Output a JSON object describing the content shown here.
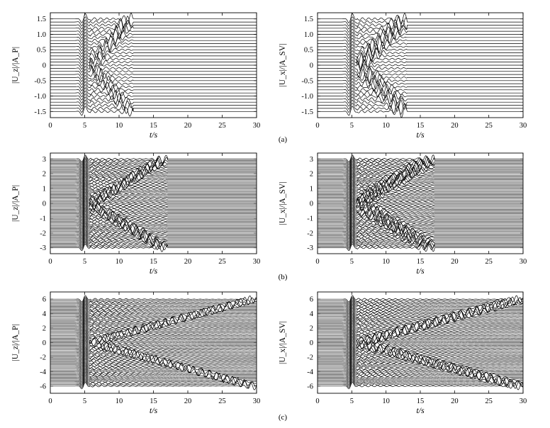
{
  "figure": {
    "subfigure_labels": [
      "(a)",
      "(b)",
      "(c)"
    ]
  },
  "chart_data": [
    {
      "type": "line",
      "panel": "a",
      "position": "left",
      "ylabel": "|U_z|/|A_P|",
      "xlabel": "t/s",
      "xlim": [
        0,
        30
      ],
      "ylim": [
        -1.7,
        1.7
      ],
      "xticks": [
        0,
        5,
        10,
        15,
        20,
        25,
        30
      ],
      "yticks": [
        1.5,
        1.0,
        0.5,
        0,
        -0.5,
        -1.0,
        -1.5
      ],
      "ytick_labels": [
        "1.5",
        "1.0",
        "0.5",
        "0",
        "-0.5",
        "-1.0",
        "-1.5"
      ],
      "n_traces": 31,
      "trace_spacing": 0.1,
      "pulse_time": 4.9,
      "pulse_amplitude": 0.2,
      "tail_end_time": 12
    },
    {
      "type": "line",
      "panel": "a",
      "position": "right",
      "ylabel": "|U_x|/|A_SV|",
      "xlabel": "t/s",
      "xlim": [
        0,
        30
      ],
      "ylim": [
        -1.7,
        1.7
      ],
      "xticks": [
        0,
        5,
        10,
        15,
        20,
        25,
        30
      ],
      "yticks": [
        1.5,
        1.0,
        0.5,
        0,
        -0.5,
        -1.0,
        -1.5
      ],
      "ytick_labels": [
        "1.5",
        "1.0",
        "0.5",
        "0",
        "-0.5",
        "-1.0",
        "-1.5"
      ],
      "n_traces": 31,
      "trace_spacing": 0.1,
      "pulse_time": 4.9,
      "pulse_amplitude": 0.2,
      "tail_end_time": 13
    },
    {
      "type": "line",
      "panel": "b",
      "position": "left",
      "ylabel": "|U_z|/|A_P|",
      "xlabel": "t/s",
      "xlim": [
        0,
        30
      ],
      "ylim": [
        -3.4,
        3.4
      ],
      "xticks": [
        0,
        5,
        10,
        15,
        20,
        25,
        30
      ],
      "yticks": [
        3,
        2,
        1,
        0,
        -1,
        -2,
        -3
      ],
      "ytick_labels": [
        "3",
        "2",
        "1",
        "0",
        "-1",
        "-2",
        "-3"
      ],
      "n_traces": 61,
      "trace_spacing": 0.1,
      "pulse_time": 4.9,
      "pulse_amplitude": 0.3,
      "tail_end_time": 17
    },
    {
      "type": "line",
      "panel": "b",
      "position": "right",
      "ylabel": "|U_x|/|A_SV|",
      "xlabel": "t/s",
      "xlim": [
        0,
        30
      ],
      "ylim": [
        -3.4,
        3.4
      ],
      "xticks": [
        0,
        5,
        10,
        15,
        20,
        25,
        30
      ],
      "yticks": [
        3,
        2,
        1,
        0,
        -1,
        -2,
        -3
      ],
      "ytick_labels": [
        "3",
        "2",
        "1",
        "0",
        "-1",
        "-2",
        "-3"
      ],
      "n_traces": 61,
      "trace_spacing": 0.1,
      "pulse_time": 4.9,
      "pulse_amplitude": 0.3,
      "tail_end_time": 17
    },
    {
      "type": "line",
      "panel": "c",
      "position": "left",
      "ylabel": "|U_z|/|A_P|",
      "xlabel": "t/s",
      "xlim": [
        0,
        30
      ],
      "ylim": [
        -7.0,
        7.0
      ],
      "xticks": [
        0,
        5,
        10,
        15,
        20,
        25,
        30
      ],
      "yticks": [
        6,
        4,
        2,
        0,
        -2,
        -4,
        -6
      ],
      "ytick_labels": [
        "6",
        "4",
        "2",
        "0",
        "-2",
        "-4",
        "-6"
      ],
      "n_traces": 61,
      "trace_spacing": 0.2,
      "pulse_time": 4.9,
      "pulse_amplitude": 0.6,
      "tail_end_time": 30
    },
    {
      "type": "line",
      "panel": "c",
      "position": "right",
      "ylabel": "|U_x|/|A_SV|",
      "xlabel": "t/s",
      "xlim": [
        0,
        30
      ],
      "ylim": [
        -7.0,
        7.0
      ],
      "xticks": [
        0,
        5,
        10,
        15,
        20,
        25,
        30
      ],
      "yticks": [
        6,
        4,
        2,
        0,
        -2,
        -4,
        -6
      ],
      "ytick_labels": [
        "6",
        "4",
        "2",
        "0",
        "-2",
        "-4",
        "-6"
      ],
      "n_traces": 61,
      "trace_spacing": 0.2,
      "pulse_time": 4.9,
      "pulse_amplitude": 0.6,
      "tail_end_time": 30
    }
  ]
}
